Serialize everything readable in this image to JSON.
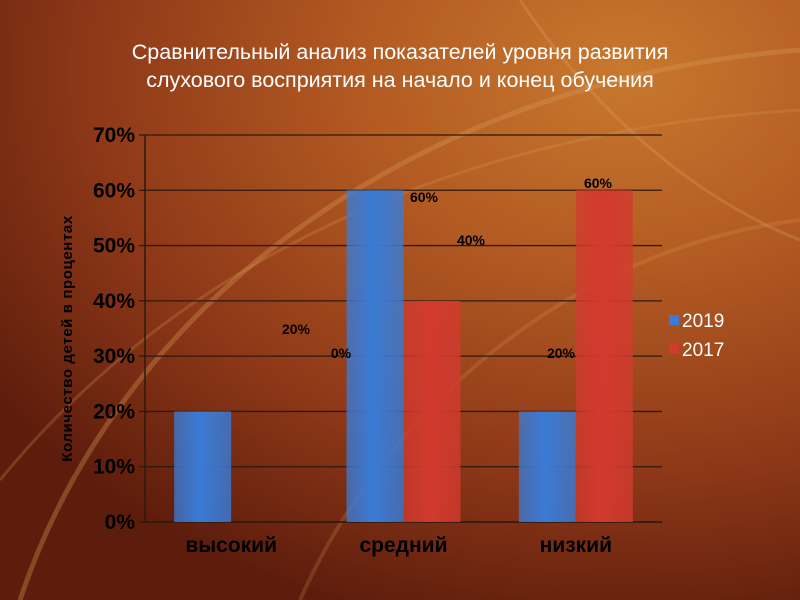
{
  "slide": {
    "title_line1": "Сравнительный анализ показателей уровня развития",
    "title_line2": "слухового восприятия на начало и конец обучения"
  },
  "colors": {
    "series_2019": "#3a7bd5",
    "series_2017": "#d23a2e",
    "background": "#8a3418",
    "gridline": "#2a1a10"
  },
  "chart_data": {
    "type": "bar",
    "categories": [
      "высокий",
      "средний",
      "низкий"
    ],
    "series": [
      {
        "name": "2019",
        "values": [
          20,
          60,
          20
        ]
      },
      {
        "name": "2017",
        "values": [
          0,
          40,
          60
        ]
      }
    ],
    "data_labels": [
      "20%",
      "0%",
      "60%",
      "40%",
      "20%",
      "60%"
    ],
    "y_ticks": [
      "0%",
      "10%",
      "20%",
      "30%",
      "40%",
      "50%",
      "60%",
      "70%"
    ],
    "ylim": [
      0,
      70
    ],
    "ylabel": "Количество детей в процентах",
    "xlabel": "",
    "grid": true,
    "legend_position": "right"
  }
}
